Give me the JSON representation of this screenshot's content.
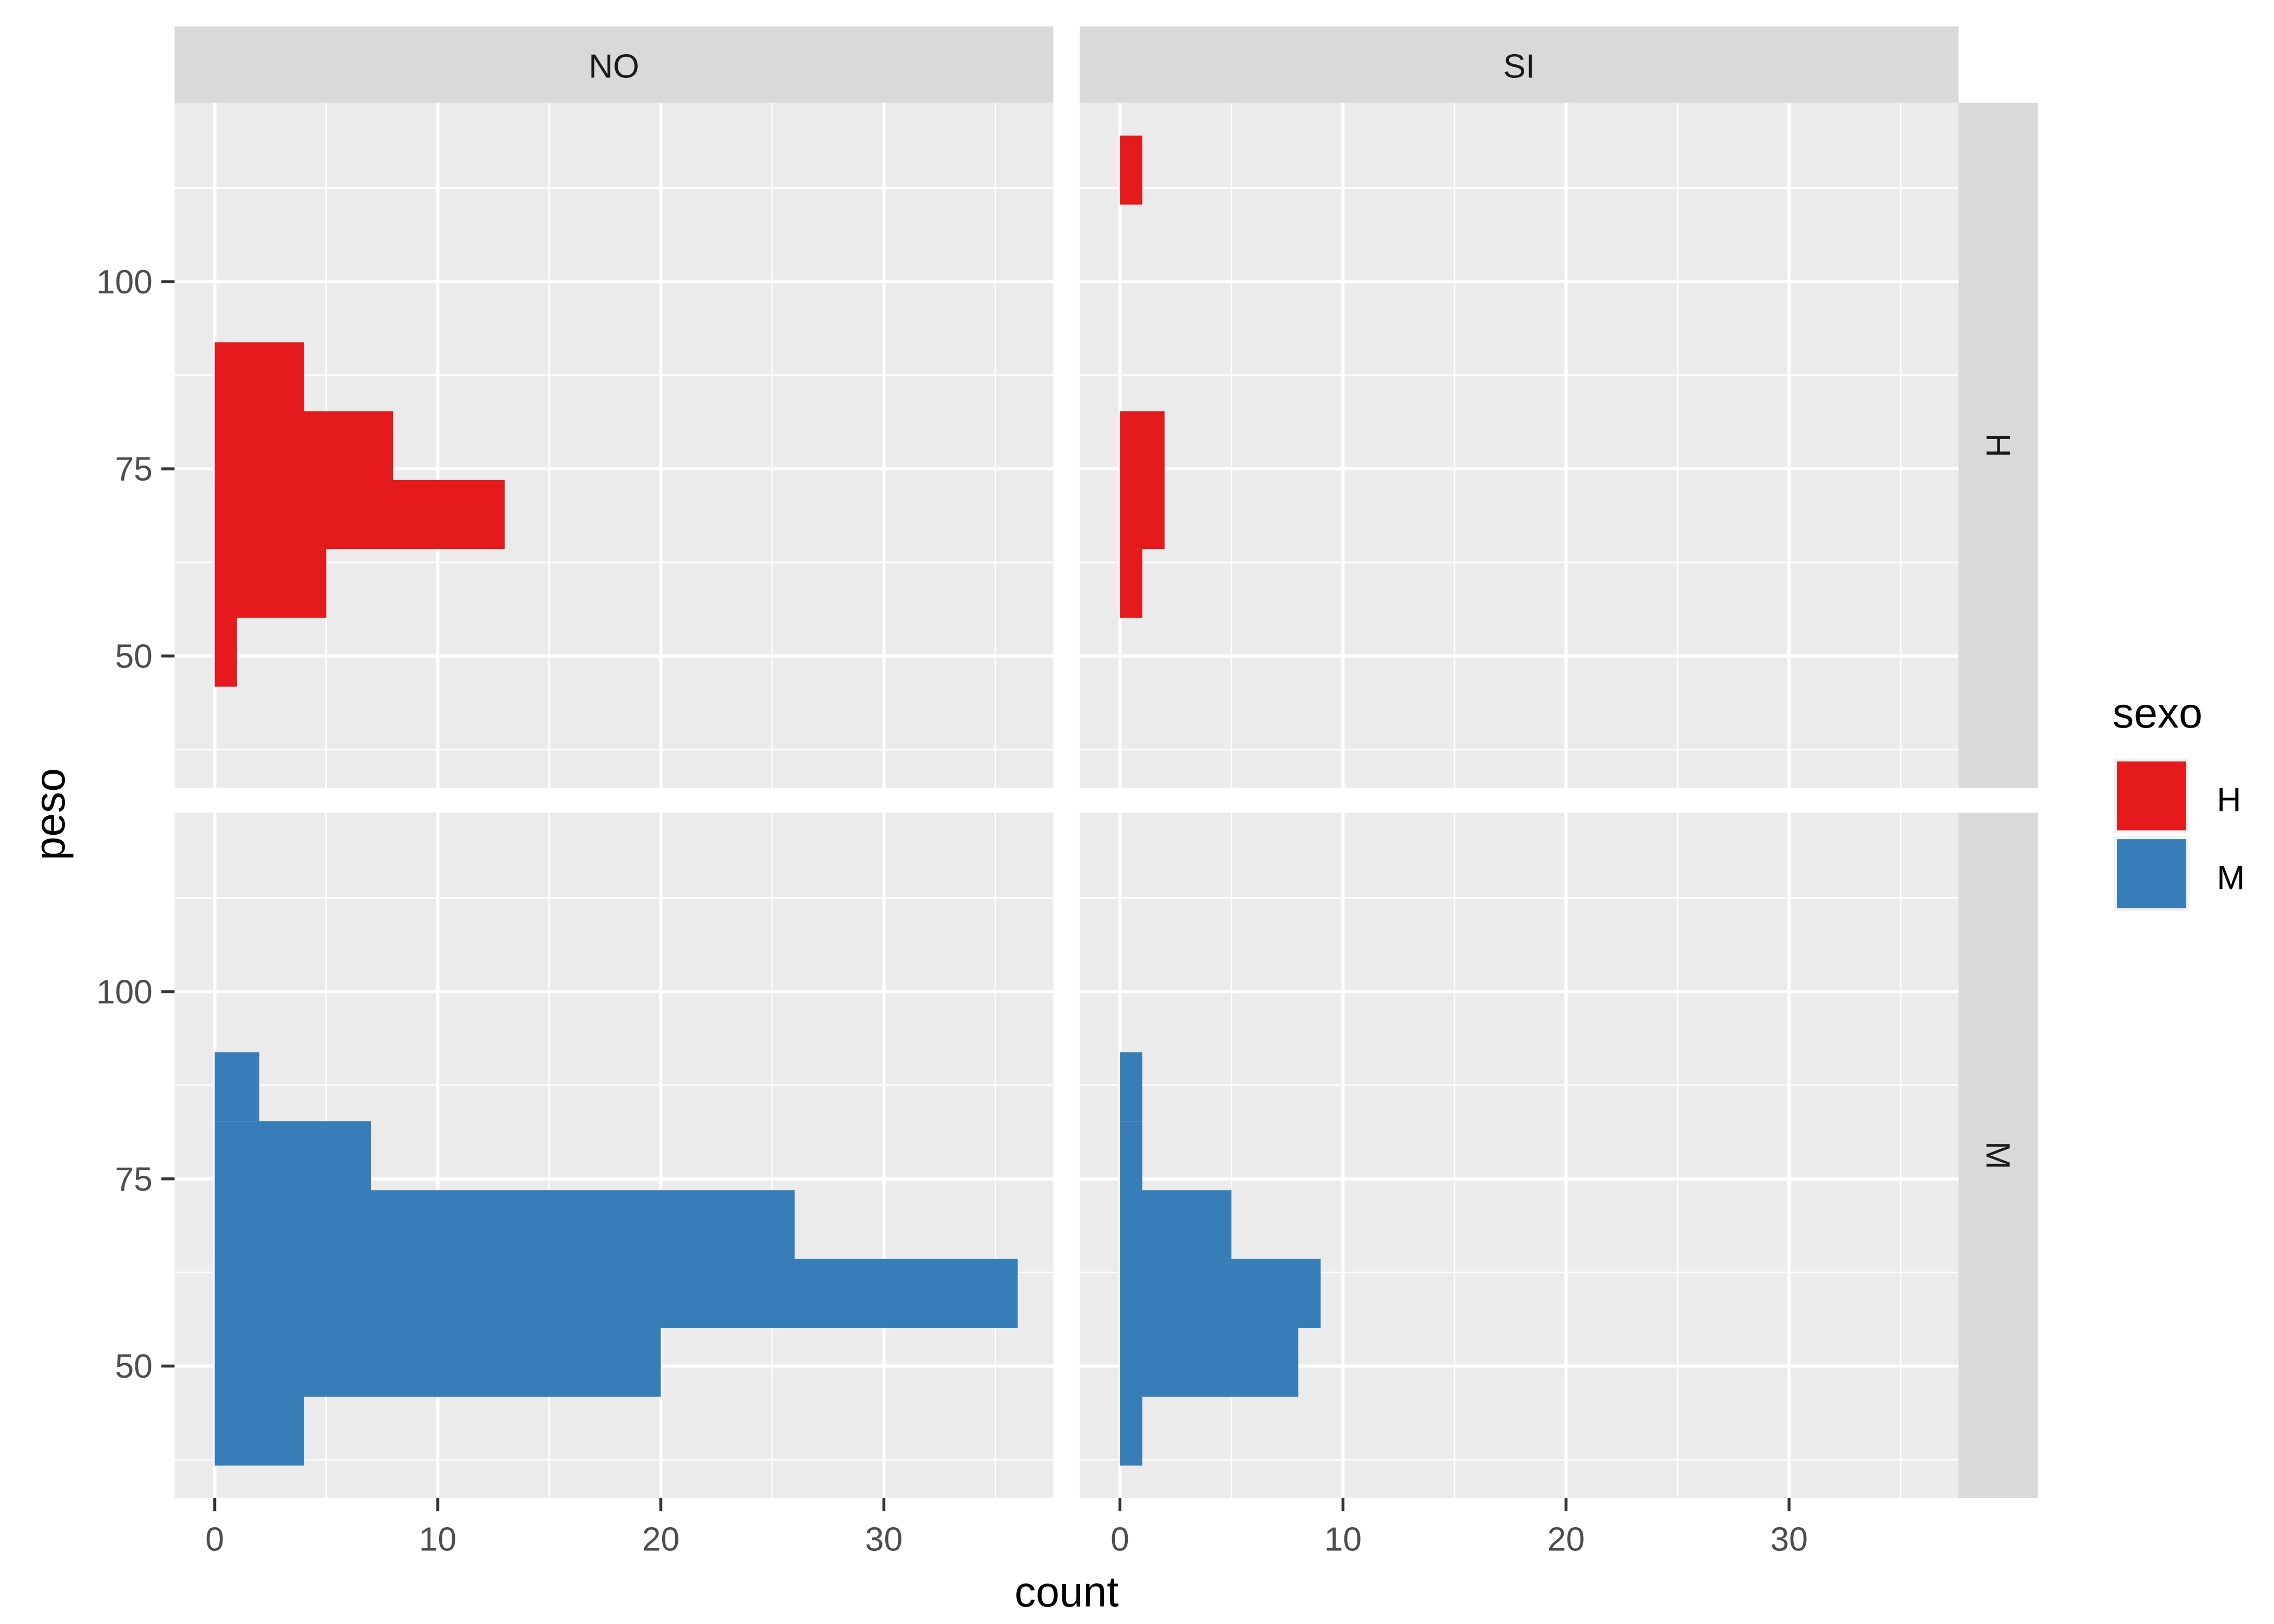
{
  "chart_data": {
    "type": "bar",
    "orientation": "horizontal histogram",
    "xlabel": "count",
    "ylabel": "peso",
    "xlim": [
      -1.8,
      37.6
    ],
    "ylim": [
      32.4,
      123.9
    ],
    "x_ticks": [
      0,
      10,
      20,
      30
    ],
    "x_tick_labels": [
      "0",
      "10",
      "20",
      "30"
    ],
    "y_ticks": [
      50,
      75,
      100
    ],
    "y_tick_labels": [
      "50",
      "75",
      "100"
    ],
    "grid": true,
    "col_facets": [
      "NO",
      "SI"
    ],
    "row_facets": [
      "H",
      "M"
    ],
    "legend": {
      "title": "sexo",
      "position": "right",
      "entries": [
        {
          "label": "H",
          "color": "#E41A1C"
        },
        {
          "label": "M",
          "color": "#377EB8"
        }
      ]
    },
    "bin_edges": [
      36.7,
      45.9,
      55.1,
      64.3,
      73.5,
      82.7,
      91.9,
      101.1,
      110.3,
      119.5
    ],
    "panels": [
      {
        "col": "NO",
        "row": "H",
        "color": "#E41A1C",
        "counts": [
          0,
          1,
          5,
          13,
          8,
          4,
          0,
          0,
          0
        ]
      },
      {
        "col": "SI",
        "row": "H",
        "color": "#E41A1C",
        "counts": [
          0,
          0,
          1,
          2,
          2,
          0,
          0,
          0,
          1
        ]
      },
      {
        "col": "NO",
        "row": "M",
        "color": "#377EB8",
        "counts": [
          4,
          20,
          36,
          26,
          7,
          2,
          0,
          0,
          0
        ]
      },
      {
        "col": "SI",
        "row": "M",
        "color": "#377EB8",
        "counts": [
          1,
          8,
          9,
          5,
          1,
          1,
          0,
          0,
          0
        ]
      }
    ]
  }
}
